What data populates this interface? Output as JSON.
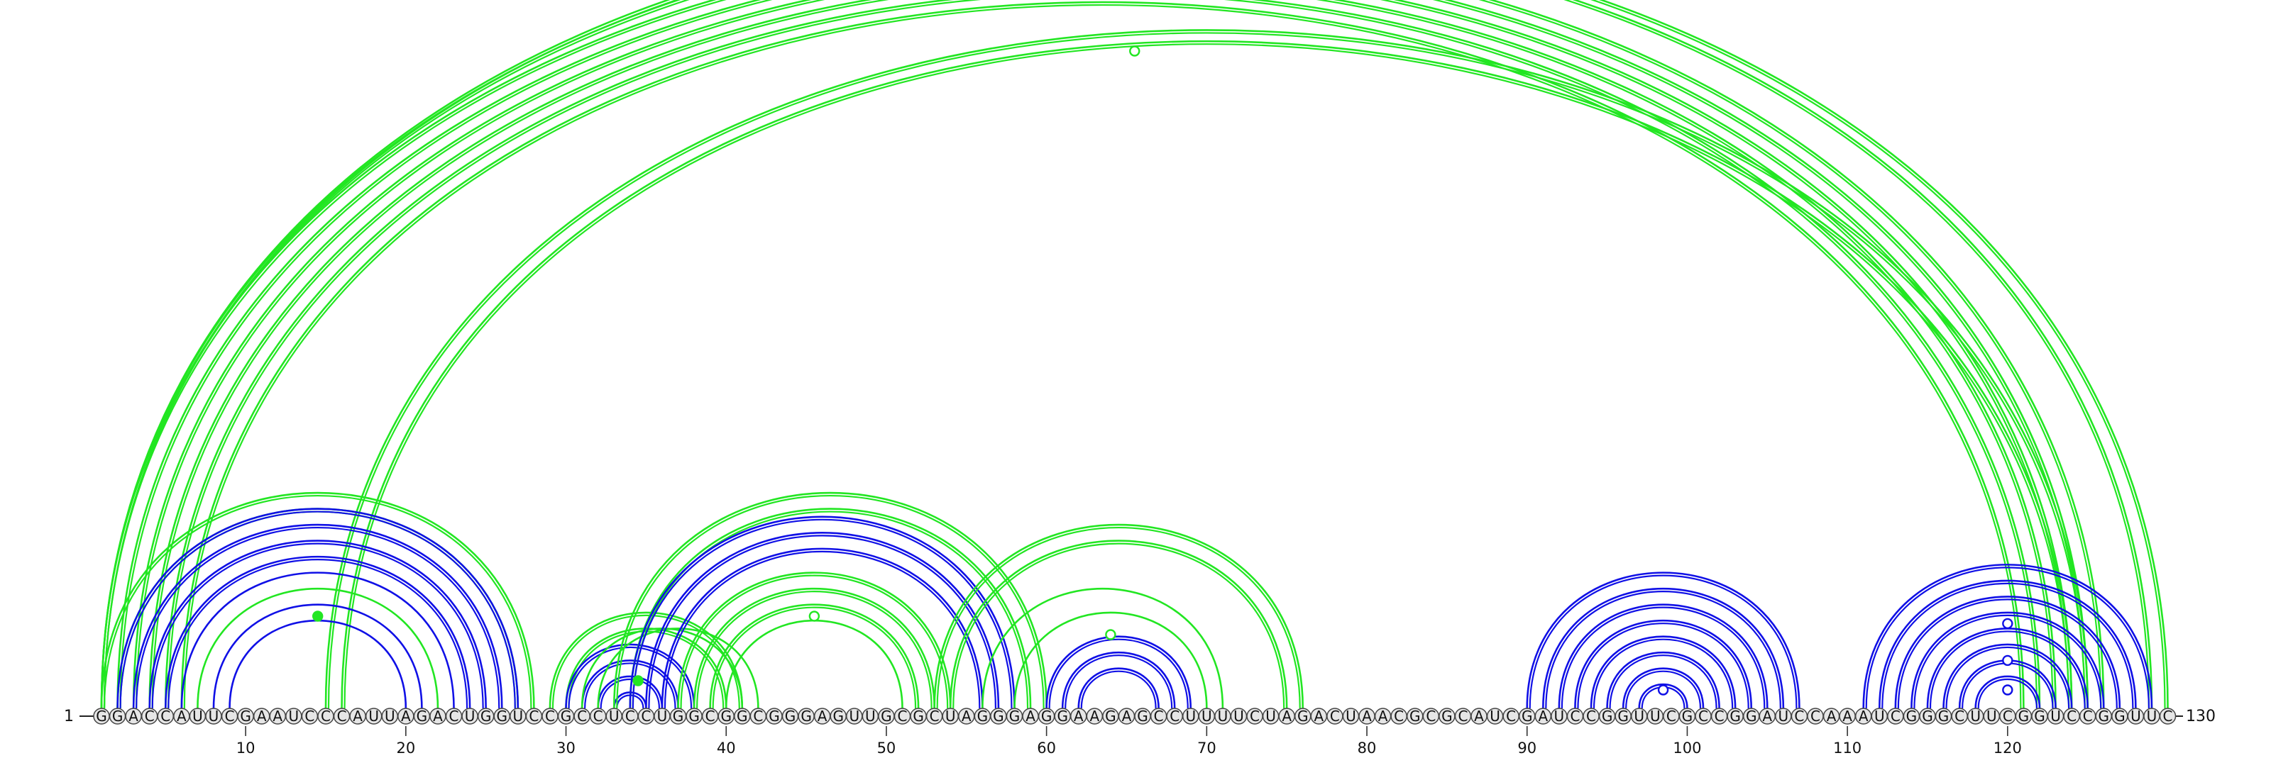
{
  "diagram": {
    "sequence": "GGACCAUUCGAAUCCCAUUAGACUGGUCCGCCUCCUGGCGGCGGGAGUUGCGCUAGGGAGGAAGAGCCUUUUCUAGACUAACGCGCAUCGAUCCGGUUCGCCGGAUCCAAAUCGGGCUUCGGUCCGGUUC",
    "start_label": "1",
    "end_label": "130",
    "length": 130,
    "ticks": [
      10,
      20,
      30,
      40,
      50,
      60,
      70,
      80,
      90,
      100,
      110,
      120
    ],
    "colors": {
      "helix_blue": "#1010e6",
      "pseudoknot_green": "#22e622",
      "base_fill": "#e6e6e6",
      "base_stroke": "#444444",
      "text": "#111111"
    },
    "arc_sets": [
      {
        "color": "pseudoknot_green",
        "pairs": [
          [
            1,
            126
          ],
          [
            2,
            125
          ],
          [
            3,
            124
          ],
          [
            4,
            123
          ],
          [
            5,
            122
          ],
          [
            6,
            121
          ],
          [
            15,
            125
          ],
          [
            16,
            124
          ]
        ],
        "doubled": true
      },
      {
        "color": "pseudoknot_green",
        "pairs": [
          [
            1,
            28
          ],
          [
            2,
            27
          ]
        ],
        "doubled": true
      },
      {
        "color": "pseudoknot_green",
        "pairs": [
          [
            1,
            130
          ],
          [
            1,
            129
          ]
        ],
        "doubled": true
      },
      {
        "color": "helix_blue",
        "pairs": [
          [
            2,
            27
          ],
          [
            3,
            26
          ],
          [
            4,
            25
          ],
          [
            5,
            24
          ]
        ],
        "doubled": true
      },
      {
        "color": "helix_blue",
        "pairs": [
          [
            6,
            23
          ],
          [
            8,
            21
          ],
          [
            9,
            20
          ]
        ],
        "doubled": false
      },
      {
        "color": "pseudoknot_green",
        "pairs": [
          [
            7,
            22
          ]
        ],
        "doubled": false
      },
      {
        "color": "pseudoknot_green",
        "pairs": [
          [
            29,
            41
          ],
          [
            30,
            40
          ]
        ],
        "doubled": true
      },
      {
        "color": "helix_blue",
        "pairs": [
          [
            30,
            38
          ],
          [
            31,
            37
          ],
          [
            32,
            36
          ],
          [
            33,
            35
          ]
        ],
        "doubled": true
      },
      {
        "color": "pseudoknot_green",
        "pairs": [
          [
            32,
            42
          ],
          [
            31,
            41
          ]
        ],
        "doubled": false
      },
      {
        "color": "pseudoknot_green",
        "pairs": [
          [
            33,
            60
          ],
          [
            34,
            59
          ]
        ],
        "doubled": true
      },
      {
        "color": "helix_blue",
        "pairs": [
          [
            34,
            58
          ],
          [
            35,
            57
          ],
          [
            36,
            56
          ]
        ],
        "doubled": true
      },
      {
        "color": "pseudoknot_green",
        "pairs": [
          [
            37,
            54
          ],
          [
            38,
            53
          ],
          [
            39,
            52
          ]
        ],
        "doubled": true
      },
      {
        "color": "pseudoknot_green",
        "pairs": [
          [
            40,
            51
          ]
        ],
        "doubled": false
      },
      {
        "color": "pseudoknot_green",
        "pairs": [
          [
            53,
            76
          ],
          [
            54,
            75
          ]
        ],
        "doubled": true
      },
      {
        "color": "helix_blue",
        "pairs": [
          [
            60,
            69
          ],
          [
            61,
            68
          ],
          [
            62,
            67
          ]
        ],
        "doubled": true
      },
      {
        "color": "pseudoknot_green",
        "pairs": [
          [
            56,
            71
          ],
          [
            58,
            70
          ]
        ],
        "doubled": false
      },
      {
        "color": "helix_blue",
        "pairs": [
          [
            90,
            107
          ],
          [
            91,
            106
          ],
          [
            92,
            105
          ],
          [
            93,
            104
          ],
          [
            94,
            103
          ],
          [
            95,
            102
          ],
          [
            96,
            101
          ],
          [
            97,
            100
          ]
        ],
        "doubled": true
      },
      {
        "color": "helix_blue",
        "pairs": [
          [
            111,
            129
          ],
          [
            112,
            128
          ],
          [
            113,
            127
          ],
          [
            114,
            126
          ],
          [
            115,
            125
          ],
          [
            116,
            124
          ],
          [
            117,
            123
          ],
          [
            118,
            122
          ]
        ],
        "doubled": true
      }
    ],
    "markers": [
      {
        "pos": 65.5,
        "level": "top",
        "style": "open",
        "color": "pseudoknot_green"
      },
      {
        "pos": 14.5,
        "level": 5,
        "style": "filled",
        "color": "pseudoknot_green"
      },
      {
        "pos": 34.5,
        "level": 1.5,
        "style": "filled",
        "color": "pseudoknot_green"
      },
      {
        "pos": 45.5,
        "level": 5,
        "style": "open",
        "color": "pseudoknot_green"
      },
      {
        "pos": 64,
        "level": 4,
        "style": "open",
        "color": "pseudoknot_green"
      },
      {
        "pos": 98.5,
        "level": 1,
        "style": "open",
        "color": "helix_blue"
      },
      {
        "pos": 120,
        "level": 1,
        "style": "open",
        "color": "helix_blue"
      },
      {
        "pos": 120,
        "level": 2.6,
        "style": "open",
        "color": "helix_blue"
      },
      {
        "pos": 120,
        "level": 4.6,
        "style": "open",
        "color": "helix_blue"
      }
    ]
  }
}
